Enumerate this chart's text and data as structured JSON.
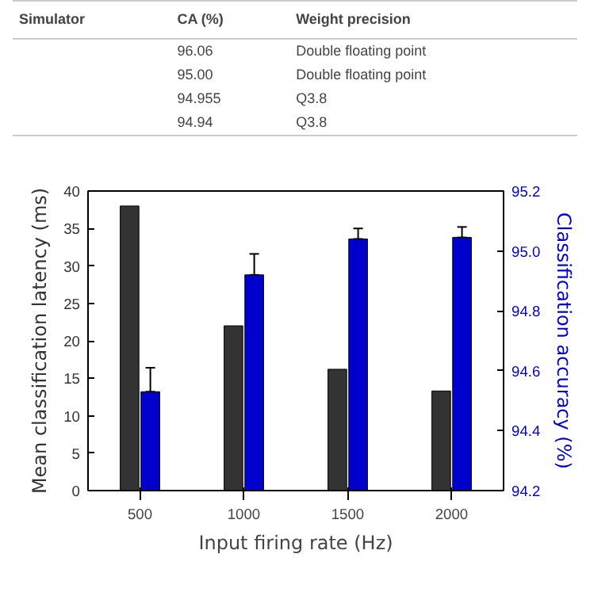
{
  "chart_data": {
    "type": "bar",
    "categories": [
      "500",
      "1000",
      "1500",
      "2000"
    ],
    "xlabel": "Input firing rate (Hz)",
    "ylabel": "Mean classification latency (ms)",
    "y2label": "Classification accuracy (%)",
    "series": [
      {
        "color": "#333333",
        "values": [
          38,
          22,
          16.2,
          13.3
        ]
      },
      {
        "color": "#0000cc",
        "axis": "y2",
        "values": [
          94.53,
          94.92,
          95.04,
          95.045
        ],
        "errors": [
          [
            94.53,
            94.61
          ],
          [
            94.92,
            94.99
          ],
          [
            95.04,
            95.075
          ],
          [
            95.045,
            95.08
          ]
        ]
      }
    ],
    "ylim": [
      0,
      40
    ],
    "yticks": [
      0,
      5,
      10,
      15,
      20,
      25,
      30,
      35,
      40
    ],
    "y2lim": [
      94.2,
      95.2
    ],
    "y2ticks": [
      94.2,
      94.4,
      94.6,
      94.8,
      {
        "value": 95.0,
        "label": "95.0"
      },
      95.2
    ],
    "grid": false,
    "annotations": [
      "Simulator",
      "CA (%)",
      "Weight precision",
      "96.06",
      "Double floating point",
      "95.00",
      "Double floating point",
      "94.955",
      "Q3.8",
      "94.94",
      "Q3.8"
    ]
  }
}
